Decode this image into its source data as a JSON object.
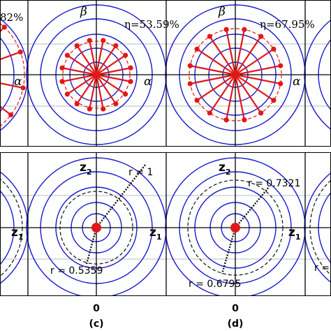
{
  "top_row": {
    "cut_left_efficiency": "82%",
    "panel_c": {
      "efficiency": "η=53.59%",
      "alpha_axis": "α",
      "beta_axis": "β",
      "cut_alpha_axis": "α",
      "spokes": 16
    },
    "panel_d": {
      "efficiency": "η=67.95%",
      "alpha_axis": "α",
      "beta_axis": "β",
      "spokes": 16
    }
  },
  "bottom_row": {
    "cut_left_axis": "z",
    "cut_left_axis_sub": "1",
    "panel_c": {
      "z2_axis": "z",
      "z2_sub": "2",
      "z1_axis": "z",
      "z1_sub": "1",
      "outer_radius_label": "r = 1",
      "inner_radius_label": "r = 0.5359"
    },
    "panel_d": {
      "z2_axis": "z",
      "z2_sub": "2",
      "z1_axis": "z",
      "z1_sub": "1",
      "outer_radius_label": "r = 0.7321",
      "inner_radius_label": "r = 0.6795"
    },
    "cut_right_label": "r ="
  },
  "x_ticks": [
    "0",
    "0"
  ],
  "panel_labels": [
    "(c)",
    "(d)"
  ],
  "colors": {
    "circle": "#1a1acc",
    "spoke": "#e01818",
    "dashed_black": "#111111",
    "dashed_red": "#e01818",
    "axis": "#000000",
    "grid": "#bbbbbb"
  }
}
